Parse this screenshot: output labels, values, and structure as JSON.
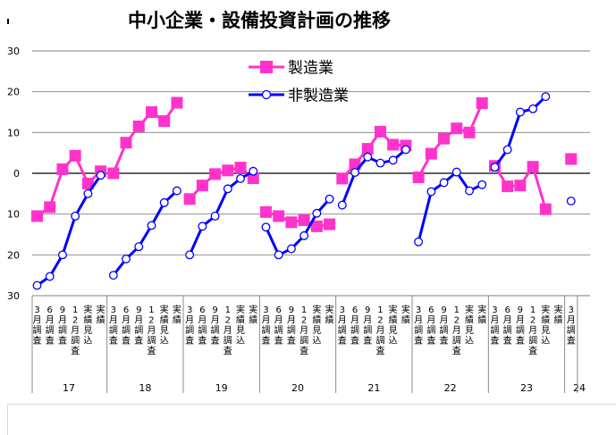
{
  "chart_data": {
    "type": "line",
    "title": "中小企業・設備投資計画の推移",
    "y_ticks": [
      "30",
      "20",
      "10",
      "0",
      "10",
      "20",
      "30"
    ],
    "ylim": [
      -30,
      30
    ],
    "grid": true,
    "legend_position": "top-center",
    "x_sub_labels": [
      "3月調査",
      "6月調査",
      "9月調査",
      "12月調査",
      "実績見込",
      "実績"
    ],
    "groups": [
      {
        "year": "17",
        "n": 6
      },
      {
        "year": "18",
        "n": 6
      },
      {
        "year": "19",
        "n": 6
      },
      {
        "year": "20",
        "n": 6
      },
      {
        "year": "21",
        "n": 6
      },
      {
        "year": "22",
        "n": 6
      },
      {
        "year": "23",
        "n": 6
      },
      {
        "year": "24",
        "n": 1
      }
    ],
    "series": [
      {
        "name": "製造業",
        "color": "#ff33cc",
        "marker": "square",
        "values": [
          [
            -10.5,
            -8.3,
            1.0,
            4.3,
            -2.5,
            0.5
          ],
          [
            0.0,
            7.5,
            11.5,
            15.0,
            12.8,
            17.3
          ],
          [
            -6.3,
            -3.0,
            -0.2,
            0.7,
            1.4,
            -1.2
          ],
          [
            -9.5,
            -10.5,
            -12.0,
            -11.5,
            -13.0,
            -12.5
          ],
          [
            -1.3,
            2.2,
            6.0,
            10.2,
            7.0,
            6.8
          ],
          [
            -1.0,
            4.8,
            8.5,
            11.0,
            10.0,
            17.2
          ],
          [
            1.8,
            -3.2,
            -3.0,
            1.6,
            -8.8
          ],
          [
            3.5
          ]
        ]
      },
      {
        "name": "非製造業",
        "color": "#0000ff",
        "marker": "circle",
        "values": [
          [
            -27.5,
            -25.3,
            -20.0,
            -10.5,
            -5.0,
            -0.5
          ],
          [
            -25.0,
            -21.0,
            -18.0,
            -12.8,
            -7.2,
            -4.3
          ],
          [
            -20.0,
            -13.0,
            -10.5,
            -3.8,
            -1.3,
            0.5
          ],
          [
            -13.2,
            -20.0,
            -18.5,
            -15.3,
            -9.8,
            -6.3
          ],
          [
            -7.8,
            0.2,
            4.0,
            2.5,
            3.2,
            5.8
          ],
          [
            -16.8,
            -4.5,
            -2.3,
            0.3,
            -4.3,
            -2.8
          ],
          [
            1.5,
            5.8,
            15.0,
            15.8,
            18.8
          ],
          [
            -6.8
          ]
        ]
      }
    ]
  }
}
